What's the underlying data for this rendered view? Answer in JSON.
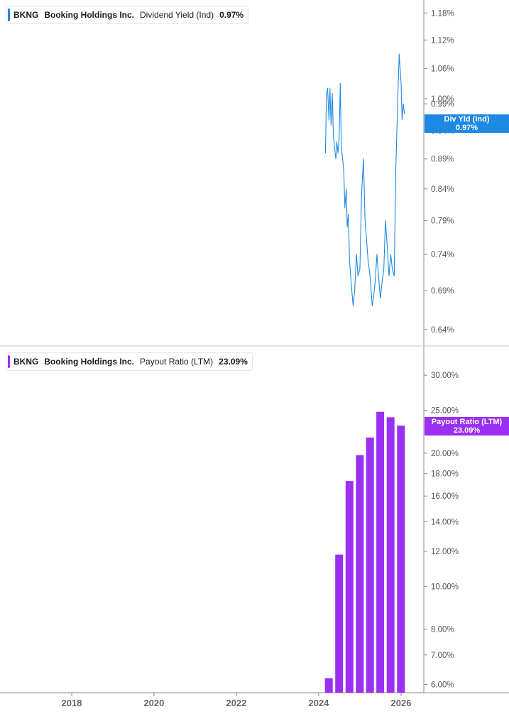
{
  "colors": {
    "yield": "#1e88e5",
    "payout": "#9b2ff2",
    "axis": "#8a8a8a",
    "text": "#555555"
  },
  "panels": {
    "yield": {
      "ticker": "BKNG",
      "company": "Booking Holdings Inc.",
      "metric": "Dividend Yield (Ind)",
      "value": "0.97%",
      "tag_line1": "Div Yld (Ind)",
      "tag_line2": "0.97%",
      "tick_labels": [
        "1.18%",
        "1.12%",
        "1.06%",
        "1.00%",
        "0.99%",
        "0.94%",
        "0.89%",
        "0.84%",
        "0.79%",
        "0.74%",
        "0.69%",
        "0.64%"
      ]
    },
    "payout": {
      "ticker": "BKNG",
      "company": "Booking Holdings Inc.",
      "metric": "Payout Ratio (LTM)",
      "value": "23.09%",
      "tag_line1": "Payout Ratio (LTM)",
      "tag_line2": "23.09%",
      "tick_labels": [
        "30.00%",
        "25.00%",
        "20.00%",
        "18.00%",
        "16.00%",
        "14.00%",
        "12.00%",
        "10.00%",
        "8.00%",
        "7.00%",
        "6.00%"
      ]
    }
  },
  "x_axis": {
    "labels": [
      "2018",
      "2020",
      "2022",
      "2024",
      "2026"
    ]
  },
  "chart_data": [
    {
      "type": "line",
      "title": "BKNG Booking Holdings Inc. Dividend Yield (Ind) 0.97%",
      "ylabel": "Dividend Yield (Ind)",
      "yscale": "log",
      "ylim": [
        0.62,
        1.21
      ],
      "series": [
        {
          "name": "Dividend Yield (Ind)",
          "x": [
            "2024-03-01",
            "2024-03-10",
            "2024-03-20",
            "2024-04-01",
            "2024-04-10",
            "2024-04-20",
            "2024-05-01",
            "2024-05-10",
            "2024-05-20",
            "2024-06-01",
            "2024-06-10",
            "2024-06-20",
            "2024-07-01",
            "2024-07-10",
            "2024-07-20",
            "2024-08-01",
            "2024-08-10",
            "2024-08-20",
            "2024-09-01",
            "2024-09-10",
            "2024-09-20",
            "2024-10-01",
            "2024-10-15",
            "2024-11-01",
            "2024-11-15",
            "2024-12-01",
            "2024-12-15",
            "2025-01-01",
            "2025-01-15",
            "2025-02-01",
            "2025-02-15",
            "2025-03-01",
            "2025-03-15",
            "2025-04-01",
            "2025-04-10",
            "2025-04-20",
            "2025-05-01",
            "2025-05-15",
            "2025-06-01",
            "2025-06-15",
            "2025-07-01",
            "2025-07-15",
            "2025-08-01",
            "2025-08-15",
            "2025-09-01",
            "2025-09-15",
            "2025-10-01",
            "2025-10-15",
            "2025-11-01",
            "2025-11-15",
            "2025-12-01",
            "2025-12-15",
            "2026-01-01",
            "2026-01-10",
            "2026-01-20",
            "2026-02-01"
          ],
          "values": [
            0.9,
            1.01,
            1.02,
            0.96,
            1.02,
            0.95,
            1.01,
            0.93,
            0.91,
            0.89,
            0.92,
            0.9,
            0.93,
            1.03,
            0.91,
            0.89,
            0.87,
            0.81,
            0.84,
            0.78,
            0.8,
            0.73,
            0.7,
            0.67,
            0.69,
            0.74,
            0.71,
            0.72,
            0.83,
            0.89,
            0.79,
            0.76,
            0.73,
            0.71,
            0.69,
            0.67,
            0.68,
            0.7,
            0.74,
            0.71,
            0.68,
            0.7,
            0.72,
            0.79,
            0.75,
            0.71,
            0.74,
            0.72,
            0.71,
            0.87,
            0.99,
            1.09,
            1.03,
            0.96,
            0.99,
            0.97
          ]
        }
      ]
    },
    {
      "type": "bar",
      "title": "BKNG Booking Holdings Inc. Payout Ratio (LTM) 23.09%",
      "ylabel": "Payout Ratio (LTM)",
      "yscale": "log",
      "ylim": [
        5.75,
        31.5
      ],
      "categories": [
        "2024-03-31",
        "2024-06-30",
        "2024-09-30",
        "2024-12-31",
        "2025-03-31",
        "2025-06-30",
        "2025-09-30",
        "2025-12-31"
      ],
      "series": [
        {
          "name": "Payout Ratio (LTM)",
          "values": [
            6.2,
            11.8,
            17.3,
            19.8,
            21.7,
            24.8,
            24.1,
            23.09
          ]
        }
      ]
    }
  ]
}
